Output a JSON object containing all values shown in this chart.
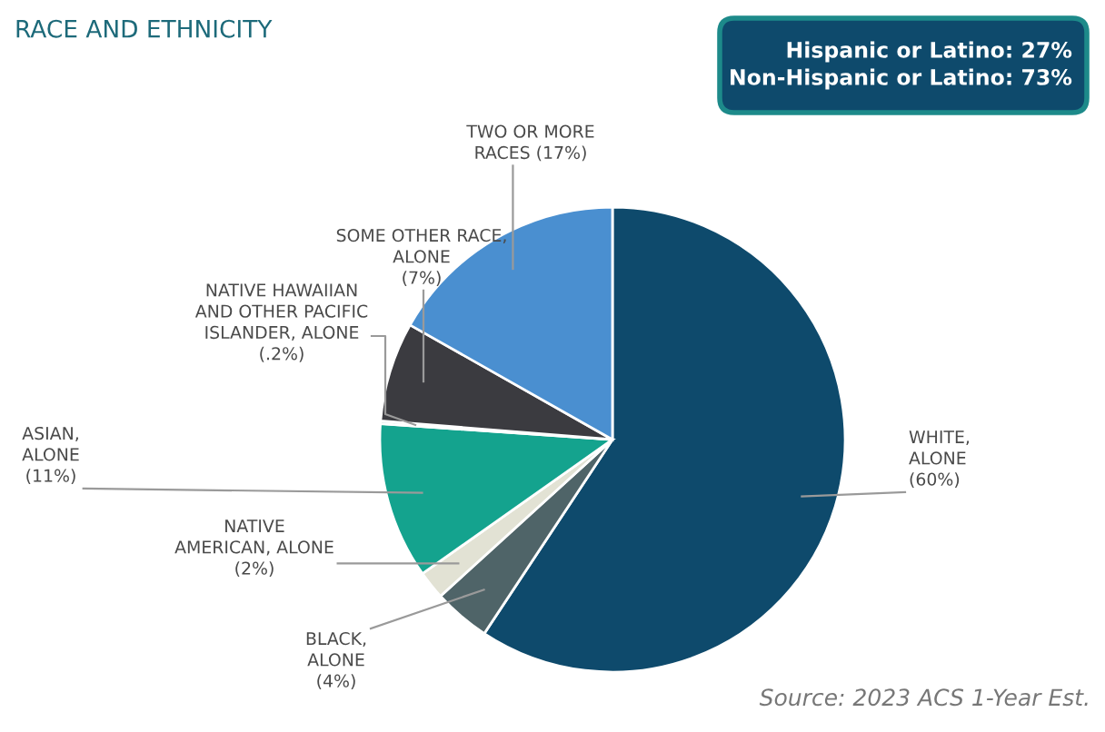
{
  "chart_data": {
    "type": "pie",
    "title": "RACE AND ETHNICITY",
    "categories": [
      "WHITE,\nALONE",
      "BLACK,\nALONE",
      "NATIVE\nAMERICAN, ALONE",
      "ASIAN,\nALONE",
      "NATIVE HAWAIIAN\nAND OTHER PACIFIC\nISLANDER, ALONE",
      "SOME OTHER RACE,\nALONE",
      "TWO OR MORE\nRACES"
    ],
    "values": [
      60,
      4,
      2,
      11,
      0.2,
      7,
      17
    ],
    "value_labels": [
      "(60%)",
      "(4%)",
      "(2%)",
      "(11%)",
      "(.2%)",
      "(7%)",
      "(17%)"
    ],
    "colors": [
      "#0e4a6c",
      "#4f6468",
      "#e2e2d4",
      "#14a38e",
      "#cfdede",
      "#3b3b40",
      "#4a8fd0"
    ],
    "annotations": [
      "Hispanic or Latino: 27%\nNon-Hispanic or Latino: 73%",
      "Source: 2023 ACS 1-Year Est."
    ]
  }
}
